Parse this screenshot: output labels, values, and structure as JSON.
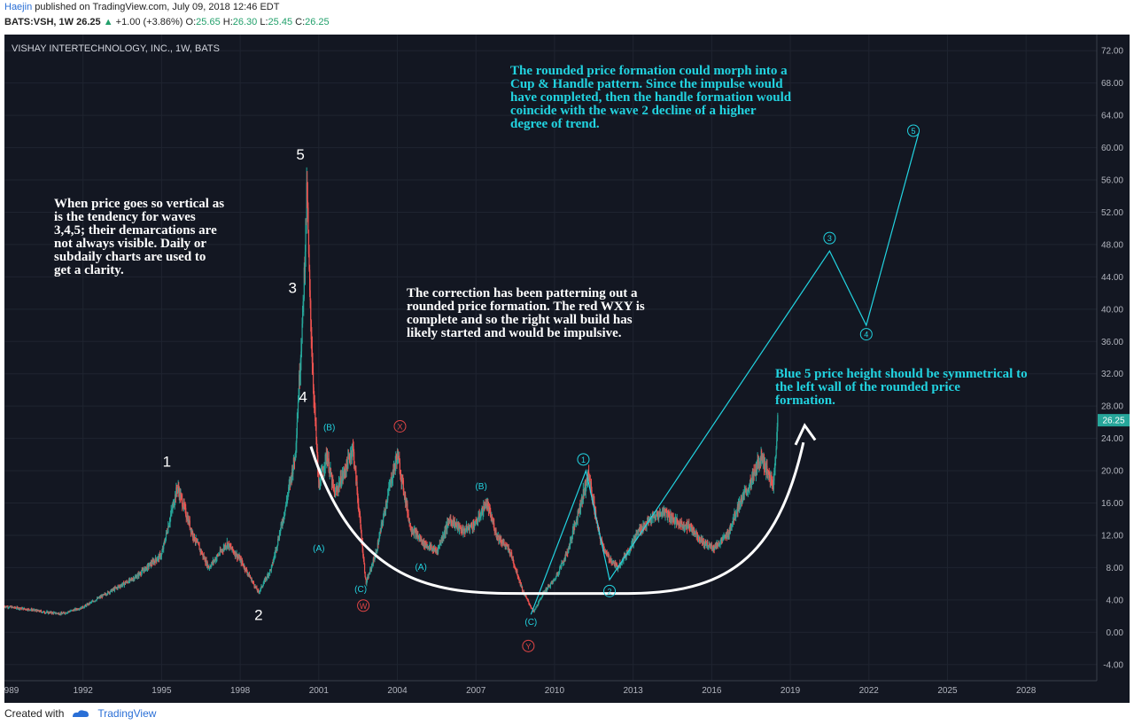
{
  "header": {
    "author": "Haejin",
    "published": "published on TradingView.com, July 09, 2018 12:46 EDT"
  },
  "quote": {
    "symbol": "BATS:VSH, 1W",
    "last": "26.25",
    "change": "+1.00 (+3.86%)",
    "open_label": "O:",
    "open": "25.65",
    "high_label": "H:",
    "high": "26.30",
    "low_label": "L:",
    "low": "25.45",
    "close_label": "C:",
    "close": "26.25"
  },
  "footer": {
    "created_with": "Created with",
    "brand": "TradingView"
  },
  "colors": {
    "bg": "#131722",
    "grid": "#1f2430",
    "cyan": "#22d3e0",
    "white": "#ffffff",
    "red": "#e04545",
    "up": "#26a69a",
    "down": "#ef5350"
  },
  "chart_data": {
    "type": "candlestick",
    "title": "VISHAY INTERTECHNOLOGY, INC., 1W, BATS",
    "ylim": [
      -6,
      74
    ],
    "xlim": [
      1989,
      2030.7
    ],
    "y_ticks": [
      "72.00",
      "68.00",
      "64.00",
      "60.00",
      "56.00",
      "52.00",
      "48.00",
      "44.00",
      "40.00",
      "36.00",
      "32.00",
      "28.00",
      "24.00",
      "20.00",
      "16.00",
      "12.00",
      "8.00",
      "4.00",
      "0.00",
      "-4.00"
    ],
    "x_ticks": [
      "989",
      "1992",
      "1995",
      "1998",
      "2001",
      "2004",
      "2007",
      "2010",
      "2013",
      "2016",
      "2019",
      "2022",
      "2025",
      "2028"
    ],
    "last_price_label": "26.25",
    "price_path": [
      [
        1989.0,
        3.2
      ],
      [
        1990.0,
        2.8
      ],
      [
        1990.5,
        2.5
      ],
      [
        1991.2,
        2.3
      ],
      [
        1992.0,
        3.1
      ],
      [
        1993.0,
        5.0
      ],
      [
        1994.0,
        6.8
      ],
      [
        1995.0,
        9.6
      ],
      [
        1995.6,
        18.0
      ],
      [
        1996.2,
        12.0
      ],
      [
        1996.8,
        8.0
      ],
      [
        1997.5,
        11.0
      ],
      [
        1998.0,
        9.0
      ],
      [
        1998.7,
        4.9
      ],
      [
        1999.2,
        8.0
      ],
      [
        1999.7,
        15.0
      ],
      [
        2000.1,
        22.0
      ],
      [
        2000.4,
        40.0
      ],
      [
        2000.55,
        55.0
      ],
      [
        2000.65,
        42.0
      ],
      [
        2000.8,
        30.0
      ],
      [
        2001.0,
        18.0
      ],
      [
        2001.3,
        22.0
      ],
      [
        2001.6,
        17.0
      ],
      [
        2002.0,
        20.0
      ],
      [
        2002.3,
        23.0
      ],
      [
        2002.8,
        6.0
      ],
      [
        2003.2,
        10.0
      ],
      [
        2003.7,
        18.0
      ],
      [
        2004.0,
        22.0
      ],
      [
        2004.5,
        13.0
      ],
      [
        2005.0,
        11.0
      ],
      [
        2005.5,
        10.0
      ],
      [
        2006.0,
        14.0
      ],
      [
        2006.5,
        12.5
      ],
      [
        2007.0,
        13.5
      ],
      [
        2007.4,
        16.0
      ],
      [
        2007.8,
        12.0
      ],
      [
        2008.3,
        10.0
      ],
      [
        2008.8,
        5.0
      ],
      [
        2009.2,
        2.5
      ],
      [
        2009.6,
        5.0
      ],
      [
        2010.0,
        6.5
      ],
      [
        2010.5,
        10.0
      ],
      [
        2011.0,
        16.0
      ],
      [
        2011.3,
        19.5
      ],
      [
        2011.7,
        12.0
      ],
      [
        2012.0,
        9.5
      ],
      [
        2012.4,
        8.0
      ],
      [
        2012.8,
        10.0
      ],
      [
        2013.2,
        12.5
      ],
      [
        2013.7,
        14.0
      ],
      [
        2014.2,
        15.0
      ],
      [
        2014.7,
        13.5
      ],
      [
        2015.2,
        13.0
      ],
      [
        2015.7,
        11.0
      ],
      [
        2016.1,
        10.5
      ],
      [
        2016.6,
        12.0
      ],
      [
        2017.0,
        15.5
      ],
      [
        2017.5,
        18.5
      ],
      [
        2017.9,
        22.0
      ],
      [
        2018.1,
        20.0
      ],
      [
        2018.35,
        18.0
      ],
      [
        2018.52,
        26.25
      ]
    ],
    "white_labels": [
      {
        "text": "1",
        "x": 1995.2,
        "y": 20.5
      },
      {
        "text": "2",
        "x": 1998.7,
        "y": 1.5
      },
      {
        "text": "3",
        "x": 2000.0,
        "y": 42.0
      },
      {
        "text": "4",
        "x": 2000.4,
        "y": 28.5
      },
      {
        "text": "5",
        "x": 2000.3,
        "y": 58.5
      }
    ],
    "cyan_labels": [
      {
        "text": "(B)",
        "x": 2001.4,
        "y": 25.0
      },
      {
        "text": "(A)",
        "x": 2001.0,
        "y": 10.0
      },
      {
        "text": "(C)",
        "x": 2002.6,
        "y": 5.0
      },
      {
        "text": "(A)",
        "x": 2004.9,
        "y": 7.7
      },
      {
        "text": "(B)",
        "x": 2007.2,
        "y": 17.7
      },
      {
        "text": "(C)",
        "x": 2009.1,
        "y": 0.9
      }
    ],
    "red_circles": [
      {
        "text": "W",
        "x": 2002.7,
        "y": 3.3
      },
      {
        "text": "X",
        "x": 2004.1,
        "y": 25.5
      },
      {
        "text": "Y",
        "x": 2009.0,
        "y": -1.7
      }
    ],
    "cyan_circles": [
      {
        "text": "1",
        "x": 2011.1,
        "y": 21.4
      },
      {
        "text": "2",
        "x": 2012.1,
        "y": 5.1
      },
      {
        "text": "3",
        "x": 2020.5,
        "y": 48.8
      },
      {
        "text": "4",
        "x": 2021.9,
        "y": 36.9
      },
      {
        "text": "5",
        "x": 2023.7,
        "y": 62.1
      }
    ],
    "projection_path": [
      [
        2009.1,
        2.2
      ],
      [
        2011.2,
        20.0
      ],
      [
        2012.1,
        6.5
      ],
      [
        2020.5,
        47.2
      ],
      [
        2021.9,
        38.0
      ],
      [
        2023.9,
        61.8
      ]
    ],
    "annotations": {
      "top": "The rounded price formation could morph into a Cup & Handle pattern. Since the impulse would have completed, then the handle formation would coincide with the wave 2 decline of a higher degree of trend.",
      "left": "When price goes so vertical as is the tendency for waves 3,4,5; their demarcations are not always visible. Daily or subdaily charts are used to get a clarity.",
      "middle": "The correction has been patterning out a rounded price formation. The red WXY is complete and so the right wall build has likely started and would be impulsive.",
      "right": "Blue 5 price height should be symmetrical to the left wall of the rounded price formation."
    }
  }
}
